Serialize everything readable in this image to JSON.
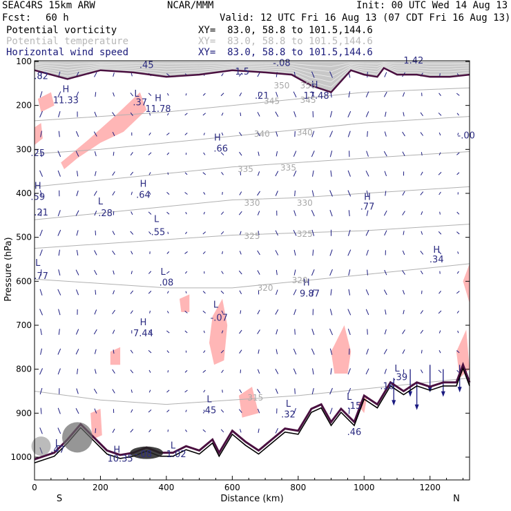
{
  "header": {
    "model": "SEAC4RS 15km ARW",
    "org": "NCAR/MMM",
    "init": "Init: 00 UTC Wed 14 Aug 13",
    "fcst_label": "Fcst:",
    "fcst_value": "60 h",
    "valid": "Valid: 12 UTC Fri 16 Aug 13 (07 CDT Fri 16 Aug 13)"
  },
  "fields": [
    {
      "name": "Potential vorticity",
      "xy": "XY=  83.0, 58.8 to 101.5,144.6",
      "color": "#000000"
    },
    {
      "name": "Potential temperature",
      "xy": "XY=  83.0, 58.8 to 101.5,144.6",
      "color": "#b8b8b8"
    },
    {
      "name": "Horizontal wind speed",
      "xy": "XY=  83.0, 58.8 to 101.5,144.6",
      "color": "#1a1a7a"
    }
  ],
  "colors": {
    "pv_shade_light": "#ffb6b6",
    "theta": "#b0b0b0",
    "wind": "#1a1a80",
    "terrain": "#000000",
    "tropopause": "#4a1040"
  },
  "chart_data": {
    "type": "cross-section",
    "xlabel": "Distance (km)",
    "ylabel": "Pressure (hPa)",
    "xlim": [
      0,
      1320
    ],
    "ylim": [
      1050,
      100
    ],
    "x_ticks": [
      "0",
      "200",
      "400",
      "600",
      "800",
      "1000",
      "1200"
    ],
    "x_tick_values": [
      0,
      200,
      400,
      600,
      800,
      1000,
      1200
    ],
    "y_ticks": [
      "100",
      "200",
      "300",
      "400",
      "500",
      "600",
      "700",
      "800",
      "900",
      "1000"
    ],
    "y_tick_values": [
      100,
      200,
      300,
      400,
      500,
      600,
      700,
      800,
      900,
      1000
    ],
    "endpoints": {
      "left": "S",
      "right": "N"
    },
    "theta_contours": [
      {
        "label": "345",
        "points": [
          [
            0,
            235
          ],
          [
            200,
            225
          ],
          [
            400,
            215
          ],
          [
            600,
            200
          ],
          [
            800,
            185
          ],
          [
            1000,
            170
          ],
          [
            1320,
            160
          ]
        ]
      },
      {
        "label": "340",
        "points": [
          [
            0,
            310
          ],
          [
            200,
            300
          ],
          [
            400,
            285
          ],
          [
            600,
            270
          ],
          [
            800,
            255
          ],
          [
            1000,
            240
          ],
          [
            1320,
            225
          ]
        ]
      },
      {
        "label": "335",
        "points": [
          [
            0,
            385
          ],
          [
            200,
            370
          ],
          [
            400,
            355
          ],
          [
            600,
            340
          ],
          [
            800,
            330
          ],
          [
            1000,
            320
          ],
          [
            1320,
            305
          ]
        ]
      },
      {
        "label": "330",
        "points": [
          [
            0,
            460
          ],
          [
            200,
            445
          ],
          [
            400,
            430
          ],
          [
            600,
            415
          ],
          [
            800,
            410
          ],
          [
            1000,
            400
          ],
          [
            1320,
            385
          ]
        ]
      },
      {
        "label": "325",
        "points": [
          [
            0,
            525
          ],
          [
            200,
            515
          ],
          [
            400,
            505
          ],
          [
            600,
            495
          ],
          [
            800,
            490
          ],
          [
            1000,
            485
          ],
          [
            1320,
            470
          ]
        ]
      },
      {
        "label": "320",
        "points": [
          [
            0,
            595
          ],
          [
            200,
            605
          ],
          [
            400,
            615
          ],
          [
            600,
            615
          ],
          [
            800,
            600
          ],
          [
            1000,
            585
          ],
          [
            1320,
            560
          ]
        ]
      },
      {
        "label": "315",
        "points": [
          [
            0,
            850
          ],
          [
            200,
            870
          ],
          [
            400,
            880
          ],
          [
            600,
            870
          ],
          [
            800,
            860
          ],
          [
            1000,
            845
          ],
          [
            1320,
            820
          ]
        ]
      }
    ],
    "theta_labels": [
      {
        "text": "350",
        "x": 750,
        "p": 155
      },
      {
        "text": "350",
        "x": 830,
        "p": 155
      },
      {
        "text": "345",
        "x": 720,
        "p": 190
      },
      {
        "text": "345",
        "x": 830,
        "p": 188
      },
      {
        "text": "340",
        "x": 690,
        "p": 265
      },
      {
        "text": "340",
        "x": 820,
        "p": 262
      },
      {
        "text": "335",
        "x": 640,
        "p": 345
      },
      {
        "text": "335",
        "x": 770,
        "p": 342
      },
      {
        "text": "330",
        "x": 660,
        "p": 422
      },
      {
        "text": "330",
        "x": 820,
        "p": 422
      },
      {
        "text": "325",
        "x": 660,
        "p": 497
      },
      {
        "text": "325",
        "x": 820,
        "p": 493
      },
      {
        "text": "320",
        "x": 700,
        "p": 615
      },
      {
        "text": "320",
        "x": 805,
        "p": 598
      },
      {
        "text": "315",
        "x": 670,
        "p": 865
      }
    ],
    "terrain": [
      [
        0,
        1005
      ],
      [
        60,
        990
      ],
      [
        100,
        960
      ],
      [
        140,
        925
      ],
      [
        180,
        955
      ],
      [
        220,
        985
      ],
      [
        260,
        995
      ],
      [
        300,
        990
      ],
      [
        340,
        978
      ],
      [
        380,
        990
      ],
      [
        420,
        990
      ],
      [
        460,
        975
      ],
      [
        500,
        985
      ],
      [
        540,
        960
      ],
      [
        560,
        990
      ],
      [
        600,
        940
      ],
      [
        640,
        965
      ],
      [
        680,
        985
      ],
      [
        720,
        960
      ],
      [
        760,
        935
      ],
      [
        800,
        940
      ],
      [
        840,
        890
      ],
      [
        870,
        880
      ],
      [
        900,
        920
      ],
      [
        930,
        890
      ],
      [
        970,
        920
      ],
      [
        1000,
        860
      ],
      [
        1040,
        880
      ],
      [
        1080,
        830
      ],
      [
        1120,
        850
      ],
      [
        1160,
        830
      ],
      [
        1200,
        840
      ],
      [
        1240,
        830
      ],
      [
        1280,
        830
      ],
      [
        1300,
        790
      ],
      [
        1320,
        830
      ]
    ],
    "tropopause": [
      [
        0,
        120
      ],
      [
        100,
        140
      ],
      [
        200,
        120
      ],
      [
        300,
        125
      ],
      [
        400,
        135
      ],
      [
        500,
        130
      ],
      [
        600,
        120
      ],
      [
        700,
        125
      ],
      [
        780,
        130
      ],
      [
        840,
        155
      ],
      [
        900,
        170
      ],
      [
        960,
        120
      ],
      [
        1000,
        130
      ],
      [
        1040,
        135
      ],
      [
        1060,
        115
      ],
      [
        1100,
        130
      ],
      [
        1160,
        130
      ],
      [
        1200,
        135
      ],
      [
        1260,
        135
      ],
      [
        1320,
        130
      ]
    ],
    "pv_regions": [
      [
        [
          10,
          185
        ],
        [
          50,
          170
        ],
        [
          60,
          200
        ],
        [
          20,
          215
        ]
      ],
      [
        [
          80,
          330
        ],
        [
          160,
          280
        ],
        [
          250,
          220
        ],
        [
          320,
          170
        ],
        [
          340,
          210
        ],
        [
          270,
          260
        ],
        [
          200,
          285
        ],
        [
          130,
          320
        ],
        [
          90,
          345
        ]
      ],
      [
        [
          0,
          250
        ],
        [
          20,
          240
        ],
        [
          25,
          275
        ],
        [
          0,
          290
        ]
      ],
      [
        [
          540,
          680
        ],
        [
          570,
          640
        ],
        [
          585,
          700
        ],
        [
          575,
          780
        ],
        [
          545,
          790
        ],
        [
          530,
          740
        ]
      ],
      [
        [
          440,
          640
        ],
        [
          470,
          630
        ],
        [
          470,
          670
        ],
        [
          445,
          670
        ]
      ],
      [
        [
          900,
          760
        ],
        [
          940,
          700
        ],
        [
          960,
          760
        ],
        [
          950,
          810
        ],
        [
          910,
          810
        ]
      ],
      [
        [
          1280,
          760
        ],
        [
          1310,
          710
        ],
        [
          1320,
          800
        ],
        [
          1290,
          820
        ]
      ],
      [
        [
          1300,
          600
        ],
        [
          1320,
          560
        ],
        [
          1320,
          650
        ]
      ],
      [
        [
          170,
          900
        ],
        [
          200,
          890
        ],
        [
          205,
          950
        ],
        [
          175,
          960
        ]
      ],
      [
        [
          230,
          760
        ],
        [
          260,
          750
        ],
        [
          260,
          790
        ],
        [
          230,
          790
        ]
      ],
      [
        [
          620,
          860
        ],
        [
          660,
          840
        ],
        [
          680,
          900
        ],
        [
          630,
          910
        ]
      ],
      [
        [
          980,
          880
        ],
        [
          1010,
          860
        ],
        [
          1000,
          900
        ]
      ]
    ],
    "extrema": [
      {
        "text": "H",
        "x": 95,
        "p": 170
      },
      {
        "text": "11.33",
        "x": 95,
        "p": 195
      },
      {
        "text": "L",
        "x": 310,
        "p": 180
      },
      {
        "text": ".37",
        "x": 320,
        "p": 200
      },
      {
        "text": "H",
        "x": 375,
        "p": 190
      },
      {
        "text": "11.78",
        "x": 375,
        "p": 215
      },
      {
        "text": "H",
        "x": 850,
        "p": 160
      },
      {
        "text": "17.48",
        "x": 855,
        "p": 185
      },
      {
        "text": ".21",
        "x": 690,
        "p": 185
      },
      {
        "text": "H",
        "x": 555,
        "p": 280
      },
      {
        "text": ".66",
        "x": 565,
        "p": 305
      },
      {
        "text": ".82",
        "x": 20,
        "p": 140
      },
      {
        "text": ".45",
        "x": 340,
        "p": 115
      },
      {
        "text": "-.00",
        "x": 1310,
        "p": 275
      },
      {
        "text": ".25",
        "x": 10,
        "p": 315
      },
      {
        "text": "H",
        "x": 330,
        "p": 385
      },
      {
        "text": ".64",
        "x": 330,
        "p": 410
      },
      {
        "text": "H",
        "x": 10,
        "p": 390
      },
      {
        "text": ".59",
        "x": 10,
        "p": 415
      },
      {
        "text": "L",
        "x": 200,
        "p": 425
      },
      {
        "text": ".28",
        "x": 215,
        "p": 452
      },
      {
        "text": ".21",
        "x": 20,
        "p": 450
      },
      {
        "text": "L",
        "x": 370,
        "p": 465
      },
      {
        "text": ".55",
        "x": 375,
        "p": 495
      },
      {
        "text": "H",
        "x": 1010,
        "p": 415
      },
      {
        "text": ".77",
        "x": 1010,
        "p": 437
      },
      {
        "text": "H",
        "x": 1220,
        "p": 535
      },
      {
        "text": ".34",
        "x": 1220,
        "p": 557
      },
      {
        "text": "L",
        "x": 10,
        "p": 565
      },
      {
        "text": ".77",
        "x": 20,
        "p": 595
      },
      {
        "text": "L",
        "x": 390,
        "p": 585
      },
      {
        "text": ".08",
        "x": 400,
        "p": 610
      },
      {
        "text": "H",
        "x": 825,
        "p": 610
      },
      {
        "text": "9.87",
        "x": 835,
        "p": 635
      },
      {
        "text": "L",
        "x": 550,
        "p": 660
      },
      {
        "text": "-.07",
        "x": 560,
        "p": 690
      },
      {
        "text": "H",
        "x": 330,
        "p": 700
      },
      {
        "text": "7.44",
        "x": 330,
        "p": 725
      },
      {
        "text": "L",
        "x": 1100,
        "p": 805
      },
      {
        "text": ".39",
        "x": 1110,
        "p": 825
      },
      {
        "text": ".16",
        "x": 1070,
        "p": 845
      },
      {
        "text": "L",
        "x": 530,
        "p": 875
      },
      {
        "text": ".45",
        "x": 530,
        "p": 900
      },
      {
        "text": "L",
        "x": 770,
        "p": 885
      },
      {
        "text": ".32",
        "x": 770,
        "p": 910
      },
      {
        "text": "L",
        "x": 955,
        "p": 870
      },
      {
        "text": ".15",
        "x": 970,
        "p": 890
      },
      {
        "text": ".46",
        "x": 970,
        "p": 950
      },
      {
        "text": "L",
        "x": 70,
        "p": 975
      },
      {
        "text": ".47",
        "x": 70,
        "p": 990
      },
      {
        "text": "H",
        "x": 250,
        "p": 990
      },
      {
        "text": "10.35",
        "x": 260,
        "p": 1010
      },
      {
        "text": "L",
        "x": 420,
        "p": 980
      },
      {
        "text": "1.02",
        "x": 430,
        "p": 1000
      },
      {
        "text": "-.08",
        "x": 330,
        "p": 1000
      },
      {
        "text": "1.5",
        "x": 630,
        "p": 130
      },
      {
        "text": "-.08",
        "x": 750,
        "p": 110
      },
      {
        "text": "1.42",
        "x": 1150,
        "p": 105
      }
    ]
  }
}
